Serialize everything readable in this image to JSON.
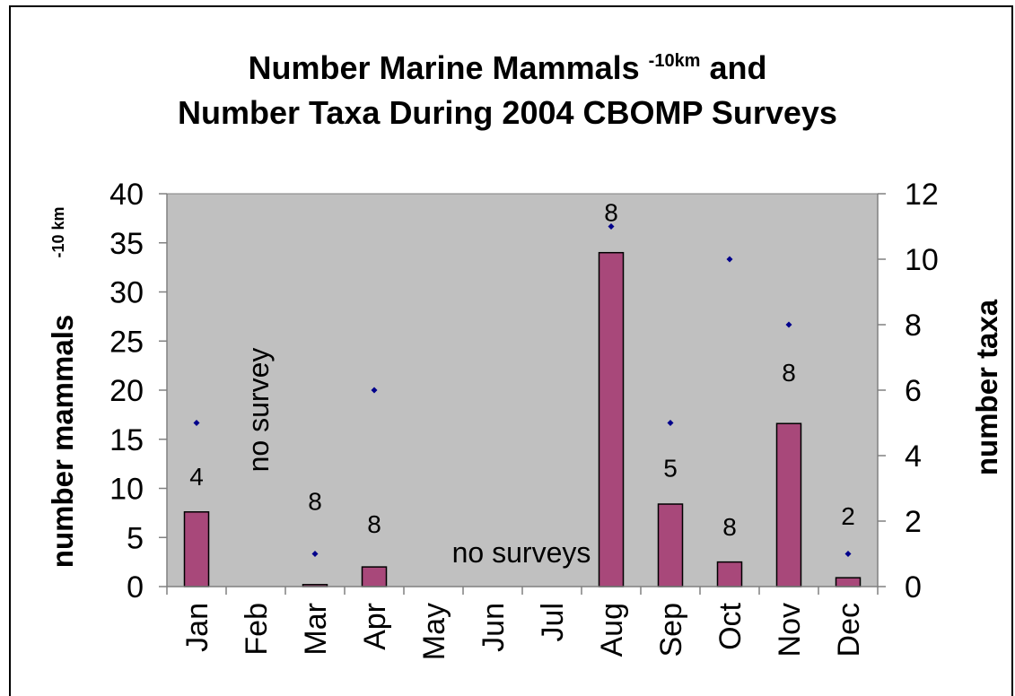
{
  "chart_data": {
    "type": "bar",
    "title_main": "Number Marine Mammals",
    "title_sup": "-10km",
    "title_rest": "and",
    "subtitle": "Number Taxa During 2004 CBOMP Surveys",
    "categories": [
      "Jan",
      "Feb",
      "Mar",
      "Apr",
      "May",
      "Jun",
      "Jul",
      "Aug",
      "Sep",
      "Oct",
      "Nov",
      "Dec"
    ],
    "series": [
      {
        "axis": "left",
        "kind": "bar",
        "color": "#a8487a",
        "values": [
          7.6,
          null,
          0.2,
          2.0,
          null,
          null,
          null,
          34.0,
          8.4,
          2.5,
          16.6,
          0.9
        ]
      },
      {
        "axis": "right",
        "kind": "point",
        "color": "#00008b",
        "values": [
          5,
          null,
          1,
          6,
          null,
          null,
          null,
          11,
          5,
          10,
          8,
          1
        ]
      }
    ],
    "data_labels": [
      {
        "category": "Jan",
        "text": "4",
        "y": 10.3
      },
      {
        "category": "Mar",
        "text": "8",
        "y": 7.8
      },
      {
        "category": "Apr",
        "text": "8",
        "y": 5.5
      },
      {
        "category": "Aug",
        "text": "8",
        "y": 37.2
      },
      {
        "category": "Sep",
        "text": "5",
        "y": 11.2
      },
      {
        "category": "Oct",
        "text": "8",
        "y": 5.2
      },
      {
        "category": "Nov",
        "text": "8",
        "y": 20.9
      },
      {
        "category": "Dec",
        "text": "2",
        "y": 6.3
      }
    ],
    "ylabel": "number mammals",
    "ylabel_sup": "-10 km",
    "y2label": "number taxa",
    "ylim": [
      0,
      40
    ],
    "yticks": [
      0,
      5,
      10,
      15,
      20,
      25,
      30,
      35,
      40
    ],
    "y2lim": [
      0,
      12
    ],
    "y2ticks": [
      0,
      2,
      4,
      6,
      8,
      10,
      12
    ],
    "annotations": {
      "no_survey": "no survey",
      "no_surveys": "no surveys"
    },
    "plot_background": "#c0c0c0",
    "grid": false,
    "legend": "none"
  }
}
